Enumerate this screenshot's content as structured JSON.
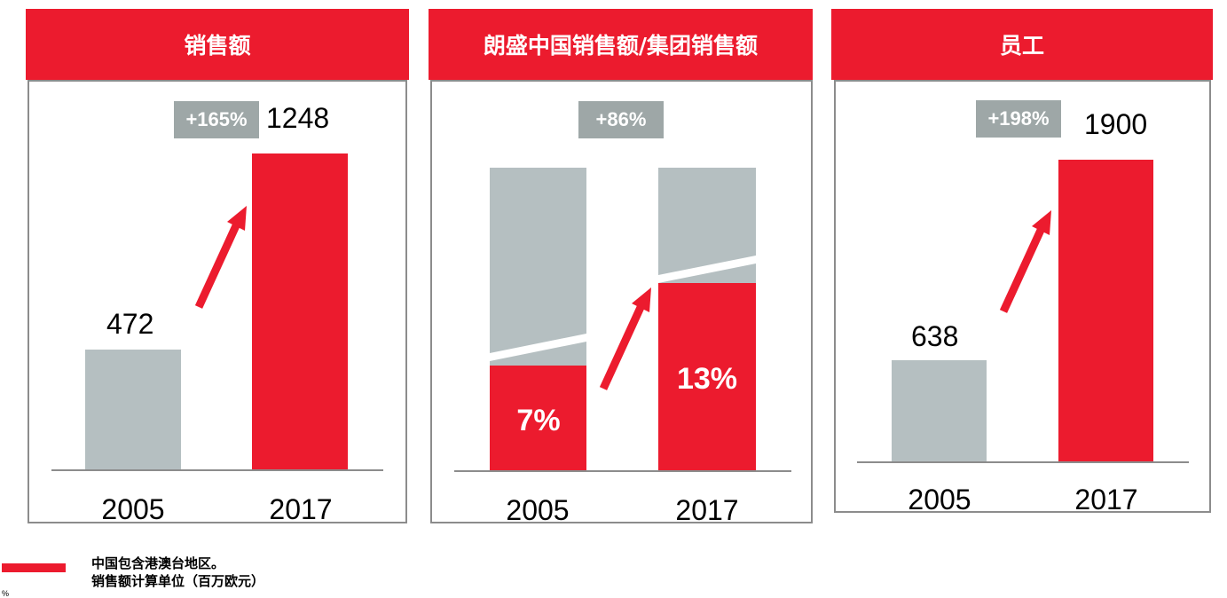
{
  "colors": {
    "accent": "#ec1b2e",
    "grey": "#b5bfc1",
    "badge": "#9ea7a7",
    "border": "#8c8c8c"
  },
  "panels": [
    {
      "title": "销售额",
      "growth": "+165%"
    },
    {
      "title": "朗盛中国销售额/集团销售额",
      "growth": "+86%"
    },
    {
      "title": "员工",
      "growth": "+198%"
    }
  ],
  "chart_data": [
    {
      "type": "bar",
      "title": "销售额",
      "categories": [
        "2005",
        "2017"
      ],
      "values": [
        472,
        1248
      ],
      "value_labels": [
        "472",
        "1248"
      ],
      "annotation": "+165%"
    },
    {
      "type": "bar",
      "title": "朗盛中国销售额/集团销售额",
      "categories": [
        "2005",
        "2017"
      ],
      "values": [
        7,
        13
      ],
      "value_labels": [
        "7%",
        "13%"
      ],
      "annotation": "+86%"
    },
    {
      "type": "bar",
      "title": "员工",
      "categories": [
        "2005",
        "2017"
      ],
      "values": [
        638,
        1900
      ],
      "value_labels": [
        "638",
        "1900"
      ],
      "annotation": "+198%"
    }
  ],
  "footnotes": [
    "中国包含港澳台地区。",
    "销售额计算单位（百万欧元）"
  ],
  "corner_mark": "%"
}
